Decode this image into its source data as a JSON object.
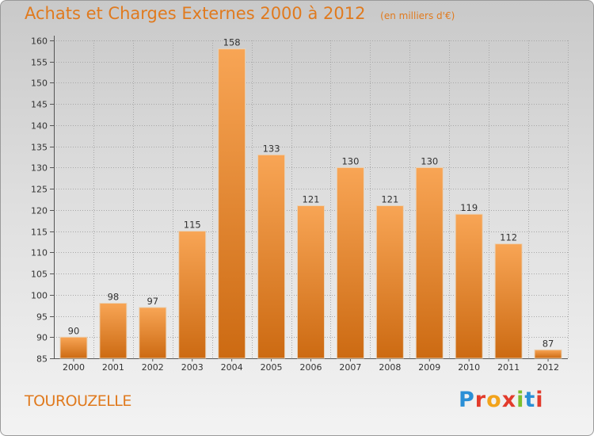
{
  "title": "Achats et Charges Externes 2000 à 2012",
  "subtitle": "(en milliers d'€)",
  "commune": "TOUROUZELLE",
  "logo": {
    "letters": [
      "P",
      "r",
      "o",
      "x",
      "i",
      "t",
      "i"
    ],
    "colors": [
      "#2a8fd6",
      "#e23b2c",
      "#f2a31b",
      "#e23b2c",
      "#7cbf2e",
      "#2a8fd6",
      "#e23b2c"
    ]
  },
  "colors": {
    "accent": "#e07a1e",
    "bar_top": "#f8a555",
    "bar_bottom": "#cc6a12",
    "grid": "#a8a8a8"
  },
  "chart_data": {
    "type": "bar",
    "categories": [
      "2000",
      "2001",
      "2002",
      "2003",
      "2004",
      "2005",
      "2006",
      "2007",
      "2008",
      "2009",
      "2010",
      "2011",
      "2012"
    ],
    "values": [
      90,
      98,
      97,
      115,
      158,
      133,
      121,
      130,
      121,
      130,
      119,
      112,
      87
    ],
    "title": "Achats et Charges Externes 2000 à 2012",
    "ylim": [
      85,
      160
    ],
    "yticks": [
      85,
      90,
      95,
      100,
      105,
      110,
      115,
      120,
      125,
      130,
      135,
      140,
      145,
      150,
      155,
      160
    ],
    "grid": true
  }
}
